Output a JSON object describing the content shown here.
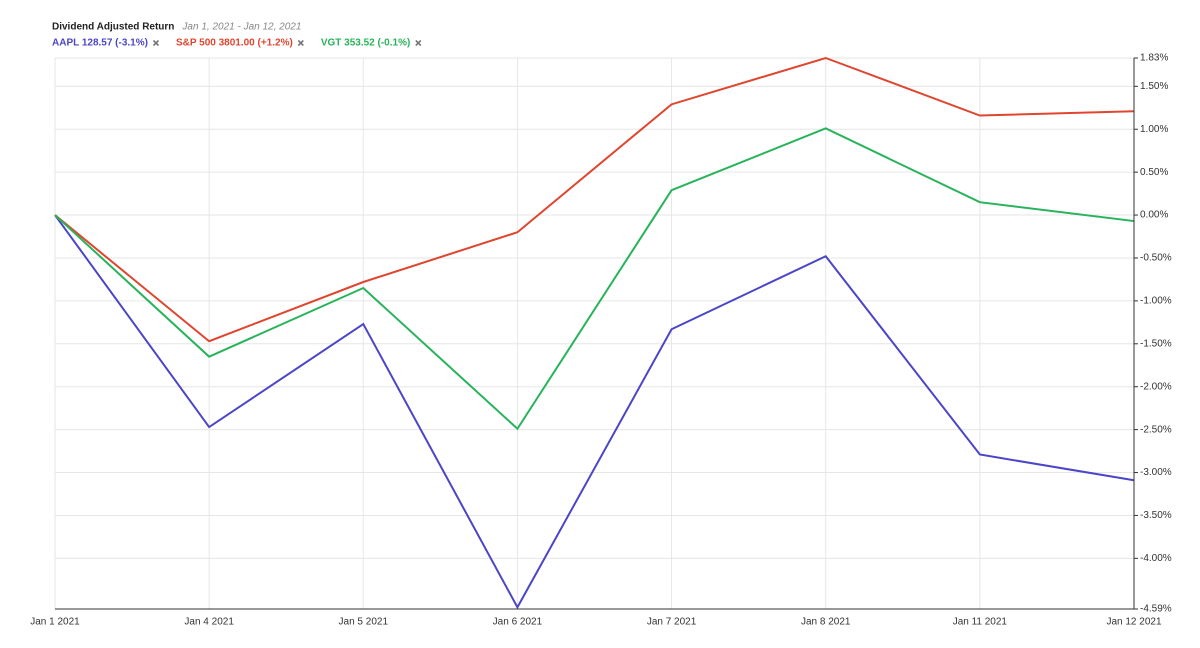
{
  "chart_data": {
    "type": "line",
    "title": "Dividend Adjusted Return",
    "subtitle": "Jan 1, 2021 - Jan 12, 2021",
    "categories": [
      "Jan 1 2021",
      "Jan 4 2021",
      "Jan 5 2021",
      "Jan 6 2021",
      "Jan 7 2021",
      "Jan 8 2021",
      "Jan 11 2021",
      "Jan 12 2021"
    ],
    "series": [
      {
        "name": "AAPL 128.57 (-3.1%)",
        "color": "#4b45c8",
        "values": [
          0,
          -2.47,
          -1.27,
          -4.57,
          -1.33,
          -0.48,
          -2.79,
          -3.09
        ]
      },
      {
        "name": "S&P 500 3801.00 (+1.2%)",
        "color": "#e0452e",
        "values": [
          0,
          -1.47,
          -0.78,
          -0.2,
          1.29,
          1.83,
          1.16,
          1.21
        ]
      },
      {
        "name": "VGT 353.52 (-0.1%)",
        "color": "#27b35a",
        "values": [
          0,
          -1.65,
          -0.85,
          -2.49,
          0.29,
          1.01,
          0.15,
          -0.07
        ]
      }
    ],
    "ylim": [
      -4.59,
      1.83
    ],
    "yticks": [
      {
        "value": 1.83,
        "label": "1.83%"
      },
      {
        "value": 1.5,
        "label": "1.50%"
      },
      {
        "value": 1.0,
        "label": "1.00%"
      },
      {
        "value": 0.5,
        "label": "0.50%"
      },
      {
        "value": 0.0,
        "label": "0.00%"
      },
      {
        "value": -0.5,
        "label": "-0.50%"
      },
      {
        "value": -1.0,
        "label": "-1.00%"
      },
      {
        "value": -1.5,
        "label": "-1.50%"
      },
      {
        "value": -2.0,
        "label": "-2.00%"
      },
      {
        "value": -2.5,
        "label": "-2.50%"
      },
      {
        "value": -3.0,
        "label": "-3.00%"
      },
      {
        "value": -3.5,
        "label": "-3.50%"
      },
      {
        "value": -4.0,
        "label": "-4.00%"
      },
      {
        "value": -4.59,
        "label": "-4.59%"
      }
    ],
    "grid": true
  }
}
